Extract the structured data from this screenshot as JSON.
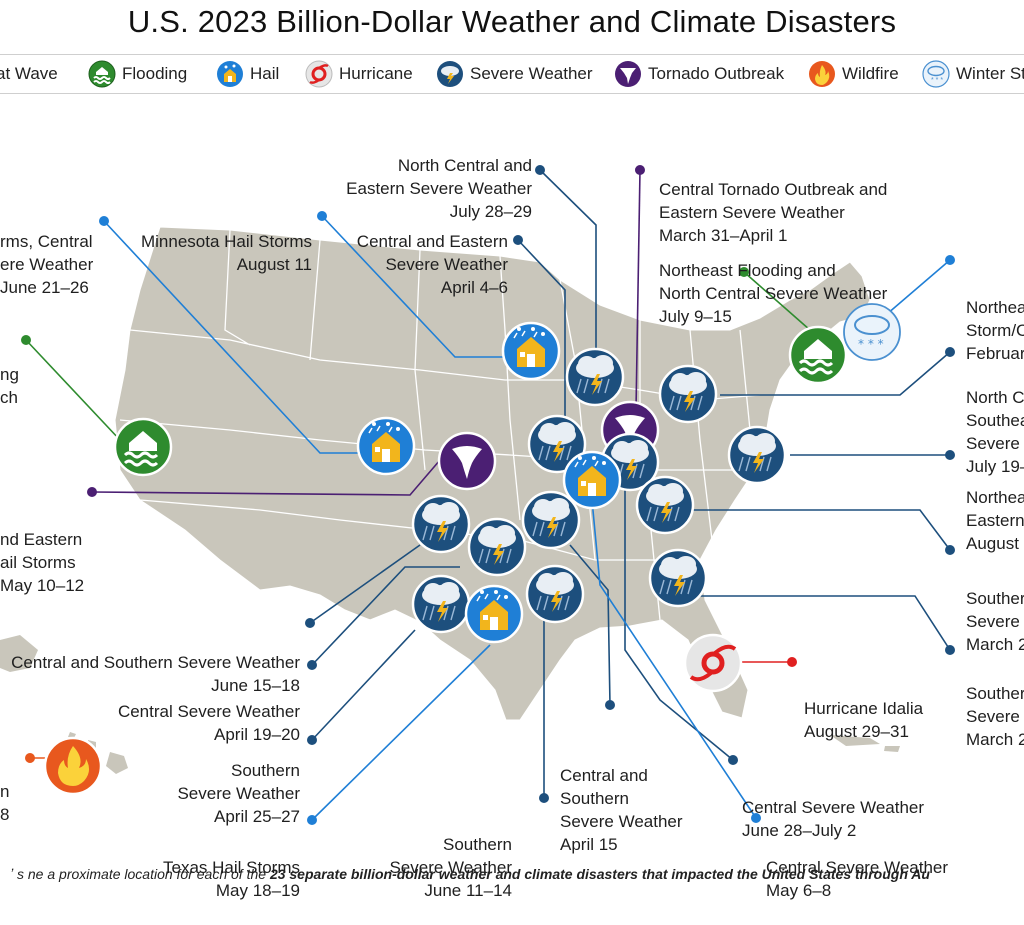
{
  "title": "U.S. 2023 Billion-Dollar Weather and Climate Disasters",
  "legend": [
    {
      "label": "at Wave",
      "icon": "heat-wave-icon",
      "color": "#c0392b"
    },
    {
      "label": "Flooding",
      "icon": "flooding-icon",
      "color": "#2e8b2e"
    },
    {
      "label": "Hail",
      "icon": "hail-icon",
      "color": "#1f7fd6"
    },
    {
      "label": "Hurricane",
      "icon": "hurricane-icon",
      "color": "#cccccc"
    },
    {
      "label": "Severe Weather",
      "icon": "severe-weather-icon",
      "color": "#1d4f7d"
    },
    {
      "label": "Tornado Outbreak",
      "icon": "tornado-icon",
      "color": "#4b1f73"
    },
    {
      "label": "Wildfire",
      "icon": "wildfire-icon",
      "color": "#e8581e"
    },
    {
      "label": "Winter St",
      "icon": "winter-storm-icon",
      "color": "#eaf3fb"
    }
  ],
  "events": [
    {
      "lines": [
        "North Central and",
        "Eastern Severe Weather",
        "July 28–29"
      ],
      "type": "severe"
    },
    {
      "lines": [
        "Central Tornado Outbreak and",
        "Eastern Severe Weather",
        "March 31–April 1"
      ],
      "type": "tornado"
    },
    {
      "lines": [
        "rms, Central",
        "ere Weather",
        "June 21–26"
      ],
      "type": "hail"
    },
    {
      "lines": [
        "Minnesota Hail Storms",
        "August 11"
      ],
      "type": "hail"
    },
    {
      "lines": [
        "Central and Eastern",
        "Severe Weather",
        "April 4–6"
      ],
      "type": "severe"
    },
    {
      "lines": [
        "Northeast Flooding and",
        "North Central Severe Weather",
        "July 9–15"
      ],
      "type": "flooding"
    },
    {
      "lines": [
        "Northea",
        "Storm/C",
        "Februar"
      ],
      "type": "winter"
    },
    {
      "lines": [
        "ng",
        "ch"
      ],
      "type": "flooding"
    },
    {
      "lines": [
        "North C",
        "Southea",
        "Severe",
        "July 19–"
      ],
      "type": "severe"
    },
    {
      "lines": [
        "Northea",
        "Eastern",
        "August"
      ],
      "type": "severe"
    },
    {
      "lines": [
        "nd Eastern",
        "ail Storms",
        "May 10–12"
      ],
      "type": "tornado"
    },
    {
      "lines": [
        "Souther",
        "Severe",
        "March 2"
      ],
      "type": "severe"
    },
    {
      "lines": [
        "Central and Southern Severe Weather",
        "June 15–18"
      ],
      "type": "severe"
    },
    {
      "lines": [
        "Souther",
        "Severe",
        "March 2"
      ],
      "type": "severe"
    },
    {
      "lines": [
        "Central Severe Weather",
        "April 19–20"
      ],
      "type": "severe"
    },
    {
      "lines": [
        "Hurricane Idalia",
        "August 29–31"
      ],
      "type": "hurricane"
    },
    {
      "lines": [
        "Southern",
        "Severe Weather",
        "April 25–27"
      ],
      "type": "severe"
    },
    {
      "lines": [
        "Central and",
        "Southern",
        "Severe Weather",
        "April 15"
      ],
      "type": "severe"
    },
    {
      "lines": [
        "Central Severe Weather",
        "June 28–July 2"
      ],
      "type": "severe"
    },
    {
      "lines": [
        "n",
        "8"
      ],
      "type": "wildfire"
    },
    {
      "lines": [
        "Southern",
        "Severe Weather",
        "June 11–14"
      ],
      "type": "severe"
    },
    {
      "lines": [
        "Texas Hail Storms",
        "May 18–19"
      ],
      "type": "hail"
    },
    {
      "lines": [
        "Central Severe Weather",
        "May 6–8"
      ],
      "type": "hail"
    }
  ],
  "footnote": {
    "prefix": "ʼ  s  ne  a  proximate location for each of the ",
    "bold": "23 separate billion-dollar weather and climate disasters that impacted the United States through Au"
  }
}
